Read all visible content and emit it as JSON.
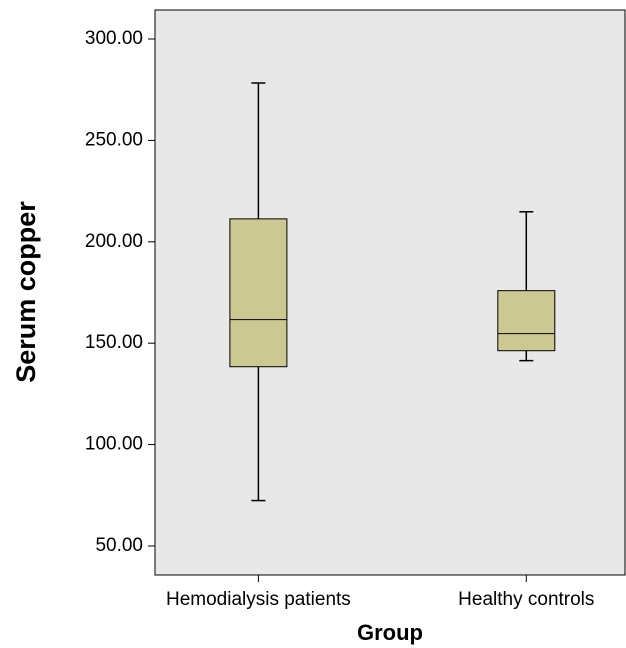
{
  "chart_data": {
    "type": "box",
    "x_label": "Group",
    "y_label": "Serum copper",
    "categories": [
      "Hemodialysis patients",
      "Healthy controls"
    ],
    "min": [
      72.4,
      141.4
    ],
    "q1": [
      138.4,
      146.3
    ],
    "median": [
      161.6,
      154.7
    ],
    "q3": [
      211.3,
      175.9
    ],
    "max": [
      278.3,
      214.8
    ],
    "color": "#cbc893",
    "background": "#e8e8e8",
    "ylim": [
      35.7,
      314.3
    ],
    "yticks": [
      {
        "value": 50,
        "label": "50.00"
      },
      {
        "value": 100,
        "label": "100.00"
      },
      {
        "value": 150,
        "label": "150.00"
      },
      {
        "value": 200,
        "label": "200.00"
      },
      {
        "value": 250,
        "label": "250.00"
      },
      {
        "value": 300,
        "label": "300.00"
      }
    ]
  }
}
